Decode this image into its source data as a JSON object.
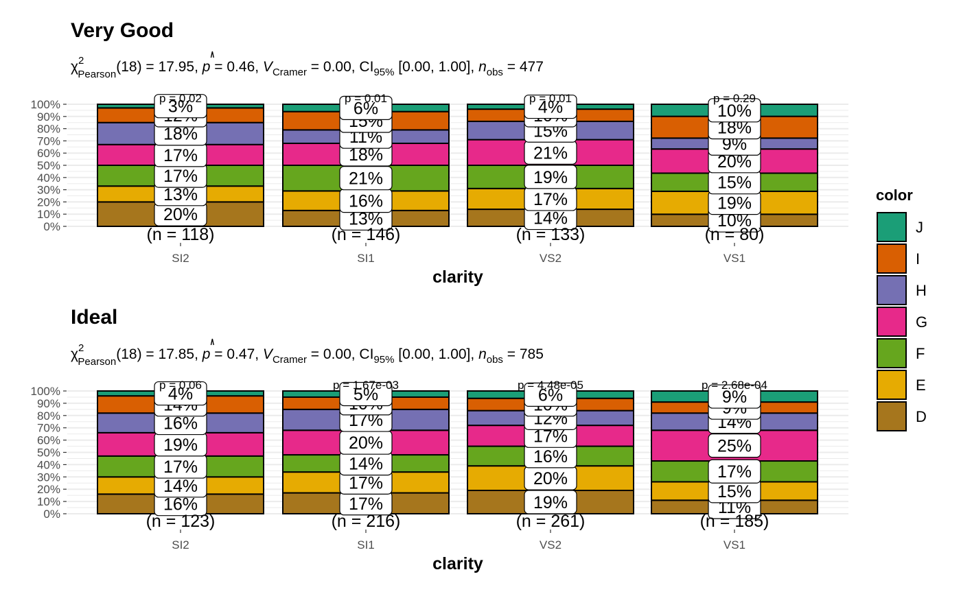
{
  "chart_data": [
    {
      "type": "bar",
      "stacked": "percent",
      "title": "Very Good",
      "subtitle": {
        "chi": "χ",
        "chi_sup": "2",
        "chi_sub": "Pearson",
        "part1": "(18) = 17.95, ",
        "p_sym": "p",
        "part2": " = 0.46, ",
        "v_sym": "V",
        "v_sub": "Cramer",
        "part3": " = 0.00, CI",
        "ci_sub": "95%",
        "part4": " [0.00, 1.00], ",
        "n_sym": "n",
        "n_sub": "obs",
        "part5": " = 477"
      },
      "xlabel": "clarity",
      "categories": [
        "SI2",
        "SI1",
        "VS2",
        "VS1"
      ],
      "n_labels": [
        "(n = 118)",
        "(n = 146)",
        "(n = 133)",
        "(n = 80)"
      ],
      "p_labels": [
        "p = 0.02",
        "p = 0.01",
        "p = 0.01",
        "p = 0.29"
      ],
      "y_ticks": [
        "0%",
        "10%",
        "20%",
        "30%",
        "40%",
        "50%",
        "60%",
        "70%",
        "80%",
        "90%",
        "100%"
      ],
      "ylim": [
        0,
        100
      ],
      "series": [
        {
          "name": "D",
          "values": [
            20,
            13,
            14,
            10
          ],
          "labels": [
            "20%",
            "13%",
            "14%",
            "10%"
          ]
        },
        {
          "name": "E",
          "values": [
            13,
            16,
            17,
            19
          ],
          "labels": [
            "13%",
            "16%",
            "17%",
            "19%"
          ]
        },
        {
          "name": "F",
          "values": [
            17,
            21,
            19,
            15
          ],
          "labels": [
            "17%",
            "21%",
            "19%",
            "15%"
          ]
        },
        {
          "name": "G",
          "values": [
            17,
            18,
            21,
            20
          ],
          "labels": [
            "17%",
            "18%",
            "21%",
            "20%"
          ]
        },
        {
          "name": "H",
          "values": [
            18,
            11,
            15,
            9
          ],
          "labels": [
            "18%",
            "11%",
            "15%",
            "9%"
          ]
        },
        {
          "name": "I",
          "values": [
            12,
            15,
            10,
            18
          ],
          "labels": [
            "12%",
            "15%",
            "10%",
            "18%"
          ]
        },
        {
          "name": "J",
          "values": [
            3,
            6,
            4,
            10
          ],
          "labels": [
            "3%",
            "6%",
            "4%",
            "10%"
          ]
        }
      ]
    },
    {
      "type": "bar",
      "stacked": "percent",
      "title": "Ideal",
      "subtitle": {
        "chi": "χ",
        "chi_sup": "2",
        "chi_sub": "Pearson",
        "part1": "(18) = 17.85, ",
        "p_sym": "p",
        "part2": " = 0.47, ",
        "v_sym": "V",
        "v_sub": "Cramer",
        "part3": " = 0.00, CI",
        "ci_sub": "95%",
        "part4": " [0.00, 1.00], ",
        "n_sym": "n",
        "n_sub": "obs",
        "part5": " = 785"
      },
      "xlabel": "clarity",
      "categories": [
        "SI2",
        "SI1",
        "VS2",
        "VS1"
      ],
      "n_labels": [
        "(n = 123)",
        "(n = 216)",
        "(n = 261)",
        "(n = 185)"
      ],
      "p_labels": [
        "p = 0.06",
        "p = 1.67e-03",
        "p = 4.48e-05",
        "p = 2.68e-04"
      ],
      "y_ticks": [
        "0%",
        "10%",
        "20%",
        "30%",
        "40%",
        "50%",
        "60%",
        "70%",
        "80%",
        "90%",
        "100%"
      ],
      "ylim": [
        0,
        100
      ],
      "series": [
        {
          "name": "D",
          "values": [
            16,
            17,
            19,
            11
          ],
          "labels": [
            "16%",
            "17%",
            "19%",
            "11%"
          ]
        },
        {
          "name": "E",
          "values": [
            14,
            17,
            20,
            15
          ],
          "labels": [
            "14%",
            "17%",
            "20%",
            "15%"
          ]
        },
        {
          "name": "F",
          "values": [
            17,
            14,
            16,
            17
          ],
          "labels": [
            "17%",
            "14%",
            "16%",
            "17%"
          ]
        },
        {
          "name": "G",
          "values": [
            19,
            20,
            17,
            25
          ],
          "labels": [
            "19%",
            "20%",
            "17%",
            "25%"
          ]
        },
        {
          "name": "H",
          "values": [
            16,
            17,
            12,
            14
          ],
          "labels": [
            "16%",
            "17%",
            "12%",
            "14%"
          ]
        },
        {
          "name": "I",
          "values": [
            14,
            10,
            10,
            9
          ],
          "labels": [
            "14%",
            "10%",
            "10%",
            "9%"
          ]
        },
        {
          "name": "J",
          "values": [
            4,
            5,
            6,
            9
          ],
          "labels": [
            "4%",
            "5%",
            "6%",
            "9%"
          ]
        }
      ]
    }
  ],
  "legend": {
    "title": "color",
    "items": [
      {
        "name": "J",
        "color": "#1b9e77"
      },
      {
        "name": "I",
        "color": "#d95f02"
      },
      {
        "name": "H",
        "color": "#7570b3"
      },
      {
        "name": "G",
        "color": "#e7298a"
      },
      {
        "name": "F",
        "color": "#66a61e"
      },
      {
        "name": "E",
        "color": "#e6ab02"
      },
      {
        "name": "D",
        "color": "#a6761d"
      }
    ]
  },
  "series_colors": {
    "D": "#a6761d",
    "E": "#e6ab02",
    "F": "#66a61e",
    "G": "#e7298a",
    "H": "#7570b3",
    "I": "#d95f02",
    "J": "#1b9e77"
  }
}
